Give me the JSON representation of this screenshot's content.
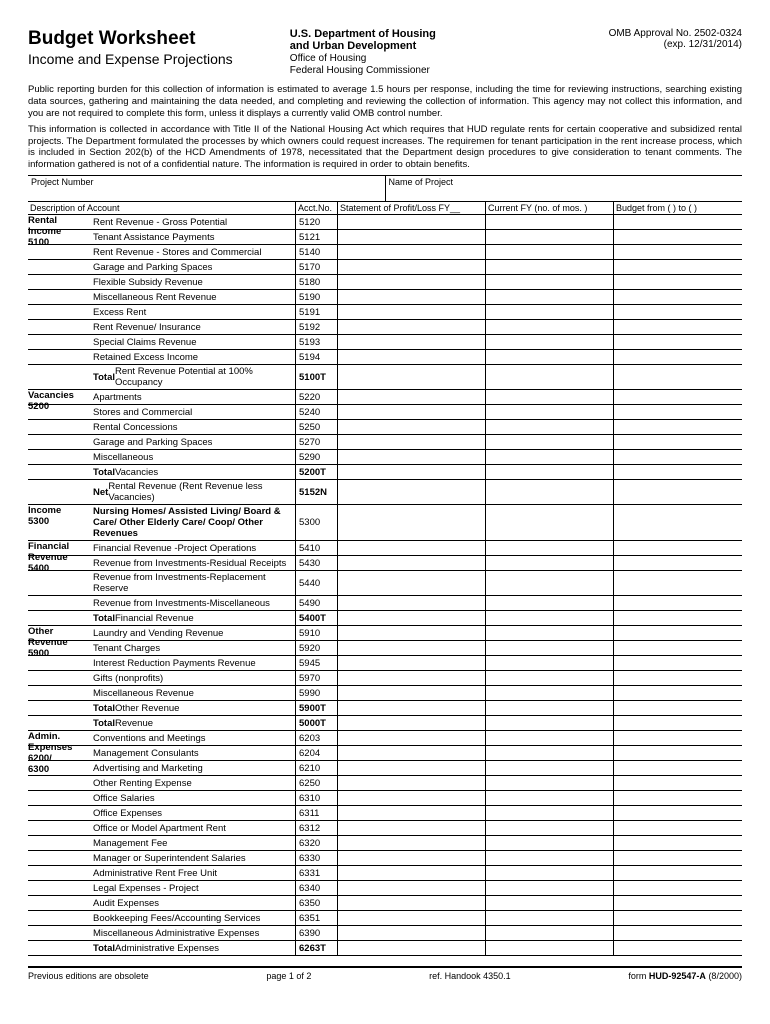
{
  "header": {
    "title": "Budget Worksheet",
    "subtitle": "Income and Expense Projections",
    "dept_line1": "U.S. Department of Housing",
    "dept_line2": "and Urban Development",
    "dept_line3": "Office of Housing",
    "dept_line4": "Federal Housing Commissioner",
    "omb1": "OMB Approval No. 2502-0324",
    "omb2": "(exp. 12/31/2014)"
  },
  "paragraphs": {
    "p1": "Public reporting burden for this collection of information is estimated to average 1.5 hours per response, including the time for reviewing instructions, searching existing data sources, gathering and maintaining the data needed, and completing and reviewing the collection of information. This agency may not collect this information, and you are not required to complete this form, unless it displays a currently valid OMB control number.",
    "p2": "This information is collected in accordance with Title II of the National Housing Act which requires that HUD regulate rents for certain cooperative and subsidized rental projects. The Department formulated the processes by which owners could request increases. The requiremen for tenant participation in the rent increase process, which is included in Section 202(b) of the HCD Amendments of 1978, necessitated that the Department design procedures to give consideration to tenant comments. The information gathered is not of a confidential nature. The information is required in order to obtain benefits."
  },
  "fields": {
    "project_number_label": "Project Number",
    "project_name_label": "Name of Project"
  },
  "columns": {
    "desc": "Description of Account",
    "acct": "Acct.No.",
    "stmt": "Statement of Profit/Loss FY__",
    "curr": "Current FY (no. of mos.      )",
    "budg": "Budget from (        ) to (        )"
  },
  "groups": [
    {
      "cat_lines": [
        "Rental",
        "Income",
        "5100"
      ],
      "rows": [
        {
          "desc": "Rent Revenue - Gross Potential",
          "acct": "5120"
        },
        {
          "desc": "Tenant Assistance Payments",
          "acct": "5121"
        },
        {
          "desc": "Rent Revenue - Stores and Commercial",
          "acct": "5140"
        },
        {
          "desc": "Garage and Parking Spaces",
          "acct": "5170"
        },
        {
          "desc": "Flexible Subsidy Revenue",
          "acct": "5180"
        },
        {
          "desc": "Miscellaneous Rent Revenue",
          "acct": "5190"
        },
        {
          "desc": "Excess Rent",
          "acct": "5191"
        },
        {
          "desc": "Rent Revenue/ Insurance",
          "acct": "5192"
        },
        {
          "desc": "Special Claims Revenue",
          "acct": "5193"
        },
        {
          "desc": "Retained Excess Income",
          "acct": "5194"
        },
        {
          "desc_prefix": "Total ",
          "desc": "Rent Revenue Potential at 100% Occupancy",
          "acct": "5100T",
          "bold_prefix": true,
          "bold_acct": true
        }
      ]
    },
    {
      "cat_lines": [
        "Vacancies",
        "5200"
      ],
      "rows": [
        {
          "desc": "Apartments",
          "acct": "5220"
        },
        {
          "desc": "Stores and Commercial",
          "acct": "5240"
        },
        {
          "desc": "Rental Concessions",
          "acct": "5250"
        },
        {
          "desc": "Garage and Parking Spaces",
          "acct": "5270"
        },
        {
          "desc": "Miscellaneous",
          "acct": "5290"
        },
        {
          "desc_prefix": "Total ",
          "desc": "Vacancies",
          "acct": "5200T",
          "bold_prefix": true,
          "bold_acct": true
        },
        {
          "desc_prefix": "Net ",
          "desc": "Rental Revenue (Rent Revenue less Vacancies)",
          "acct": "5152N",
          "bold_prefix": true,
          "bold_acct": true
        }
      ]
    },
    {
      "cat_lines": [
        "Income",
        "5300"
      ],
      "rows": [
        {
          "desc": "Nursing Homes/ Assisted Living/ Board & Care/ Other Elderly Care/ Coop/  Other Revenues",
          "acct": "5300",
          "bold_desc": true,
          "tall": true
        }
      ]
    },
    {
      "cat_lines": [
        "Financial",
        "Revenue",
        "5400"
      ],
      "rows": [
        {
          "desc": "Financial Revenue -Project Operations",
          "acct": "5410"
        },
        {
          "desc": "Revenue from Investments-Residual Receipts",
          "acct": "5430"
        },
        {
          "desc": "Revenue from Investments-Replacement Reserve",
          "acct": "5440"
        },
        {
          "desc": "Revenue  from Investments-Miscellaneous",
          "acct": "5490"
        },
        {
          "desc_prefix": "Total ",
          "desc": "Financial Revenue",
          "acct": "5400T",
          "bold_prefix": true,
          "bold_acct": true
        }
      ]
    },
    {
      "cat_lines": [
        "Other",
        "Revenue",
        "5900"
      ],
      "rows": [
        {
          "desc": "Laundry and Vending Revenue",
          "acct": "5910"
        },
        {
          "desc": "Tenant Charges",
          "acct": "5920"
        },
        {
          "desc": "Interest Reduction Payments Revenue",
          "acct": "5945"
        },
        {
          "desc": "Gifts (nonprofits)",
          "acct": "5970"
        },
        {
          "desc": "Miscellaneous Revenue",
          "acct": "5990"
        },
        {
          "desc_prefix": "Total ",
          "desc": "Other Revenue",
          "acct": "5900T",
          "bold_prefix": true,
          "bold_acct": true
        },
        {
          "desc_prefix": "Total ",
          "desc": "Revenue",
          "acct": "5000T",
          "bold_prefix": true,
          "bold_acct": true
        }
      ]
    },
    {
      "cat_lines": [
        "Admin.",
        "Expenses",
        "6200/",
        "6300"
      ],
      "rows": [
        {
          "desc": "Conventions and Meetings",
          "acct": "6203"
        },
        {
          "desc": "Management Consulants",
          "acct": "6204"
        },
        {
          "desc": "Advertising and Marketing",
          "acct": "6210"
        },
        {
          "desc": "Other Renting Expense",
          "acct": "6250"
        },
        {
          "desc": "Office Salaries",
          "acct": "6310"
        },
        {
          "desc": "Office Expenses",
          "acct": "6311"
        },
        {
          "desc": "Office or Model Apartment Rent",
          "acct": "6312"
        },
        {
          "desc": "Management Fee",
          "acct": "6320"
        },
        {
          "desc": "Manager or Superintendent Salaries",
          "acct": "6330"
        },
        {
          "desc": "Administrative Rent Free Unit",
          "acct": "6331"
        },
        {
          "desc": "Legal Expenses - Project",
          "acct": "6340"
        },
        {
          "desc": "Audit Expenses",
          "acct": "6350"
        },
        {
          "desc": "Bookkeeping Fees/Accounting Services",
          "acct": "6351"
        },
        {
          "desc": "Miscellaneous Administrative Expenses",
          "acct": "6390"
        },
        {
          "desc_prefix": "Total ",
          "desc": "Administrative Expenses",
          "acct": "6263T",
          "bold_prefix": true,
          "bold_acct": true
        }
      ]
    }
  ],
  "footer": {
    "left": "Previous editions are obsolete",
    "mid1": "page 1 of 2",
    "mid2": "ref. Handook 4350.1",
    "right_prefix": "form ",
    "right_bold": "HUD-92547-A",
    "right_suffix": " (8/2000)"
  }
}
